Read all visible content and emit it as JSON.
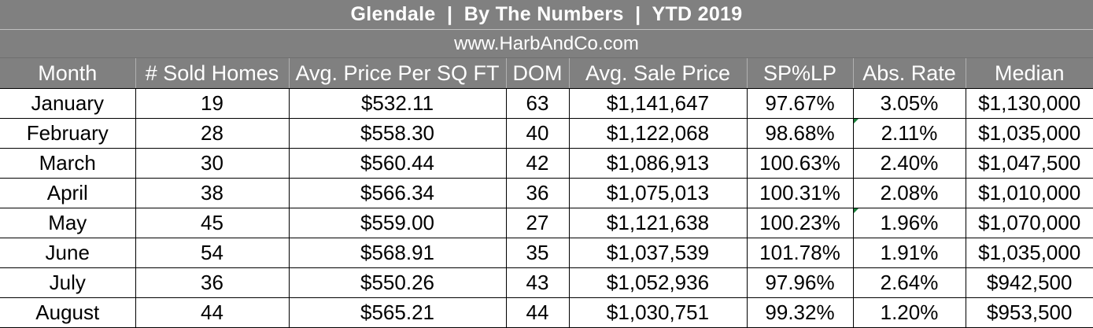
{
  "header": {
    "title": "Glendale  |  By The Numbers  |  YTD 2019",
    "website": "www.HarbAndCo.com"
  },
  "table": {
    "columns": [
      "Month",
      "# Sold Homes",
      "Avg. Price Per SQ FT",
      "DOM",
      "Avg. Sale Price",
      "SP%LP",
      "Abs. Rate",
      "Median"
    ],
    "rows": [
      [
        "January",
        "19",
        "$532.11",
        "63",
        "$1,141,647",
        "97.67%",
        "3.05%",
        "$1,130,000"
      ],
      [
        "February",
        "28",
        "$558.30",
        "40",
        "$1,122,068",
        "98.68%",
        "2.11%",
        "$1,035,000"
      ],
      [
        "March",
        "30",
        "$560.44",
        "42",
        "$1,086,913",
        "100.63%",
        "2.40%",
        "$1,047,500"
      ],
      [
        "April",
        "38",
        "$566.34",
        "36",
        "$1,075,013",
        "100.31%",
        "2.08%",
        "$1,010,000"
      ],
      [
        "May",
        "45",
        "$559.00",
        "27",
        "$1,121,638",
        "100.23%",
        "1.96%",
        "$1,070,000"
      ],
      [
        "June",
        "54",
        "$568.91",
        "35",
        "$1,037,539",
        "101.78%",
        "1.91%",
        "$1,035,000"
      ],
      [
        "July",
        "36",
        "$550.26",
        "43",
        "$1,052,936",
        "97.96%",
        "2.64%",
        "$942,500"
      ],
      [
        "August",
        "44",
        "$565.21",
        "44",
        "$1,030,751",
        "99.32%",
        "1.20%",
        "$953,500"
      ]
    ]
  },
  "colors": {
    "header_background": "#808080",
    "header_text": "#ffffff",
    "cell_border": "#000000",
    "comment_indicator": "#1a7f3a"
  }
}
